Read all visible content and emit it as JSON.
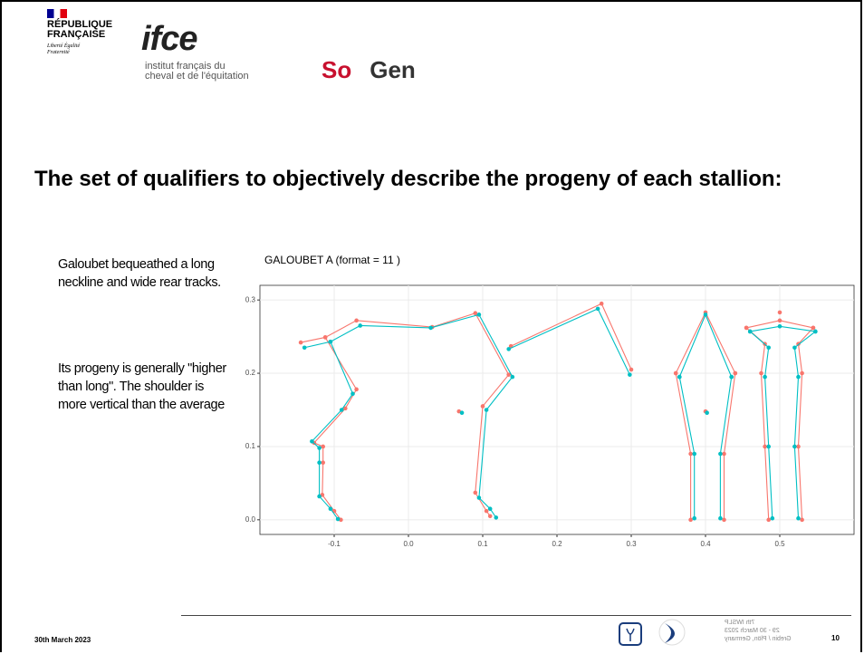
{
  "header": {
    "republic": "RÉPUBLIQUE FRANÇAISE",
    "motto": "Liberté Égalité Fraternité",
    "ifce": "ifce",
    "ifce_sub": "institut français du cheval et de l'équitation",
    "sogen_so": "So",
    "sogen_gen": "Gen"
  },
  "title": "The set of qualifiers to objectively describe the progeny of each stallion:",
  "paragraphs": [
    "Galoubet bequeathed a long neckline and wide rear tracks.",
    "Its progeny is generally \"higher than long\". The shoulder is more vertical than the average"
  ],
  "chart_data": {
    "type": "line",
    "title": "GALOUBET A (format = 11 )",
    "xlim": [
      -0.2,
      0.6
    ],
    "ylim": [
      -0.02,
      0.32
    ],
    "xticks": [
      -0.1,
      {
        "value": 0,
        "label": "0.0"
      },
      0.1,
      0.2,
      0.3,
      0.4,
      0.5
    ],
    "yticks": [
      {
        "value": 0,
        "label": "0.0"
      },
      0.1,
      0.2,
      0.3
    ],
    "grid": true,
    "series": [
      {
        "color": "#f8766d",
        "x": [
          -0.145,
          -0.112,
          -0.07,
          0.032,
          0.09,
          0.135,
          0.1,
          0.09,
          0.105,
          0.11,
          null,
          -0.112,
          -0.07,
          -0.085,
          -0.127,
          -0.115,
          -0.115,
          -0.116,
          -0.1,
          -0.091,
          null,
          0.138,
          0.26,
          0.3,
          null,
          0.068,
          null,
          0.36,
          0.4,
          0.44,
          null,
          0.36,
          0.38,
          0.38,
          null,
          0.44,
          0.425,
          0.425,
          null,
          0.4,
          null,
          0.455,
          0.5,
          0.545,
          null,
          0.455,
          0.48,
          0.475,
          0.48,
          0.485,
          null,
          0.545,
          0.525,
          0.53,
          0.525,
          0.53,
          null,
          0.5
        ],
        "values": [
          0.242,
          0.249,
          0.272,
          0.263,
          0.282,
          0.198,
          0.155,
          0.037,
          0.012,
          0.005,
          null,
          0.249,
          0.178,
          0.152,
          0.105,
          0.1,
          0.078,
          0.034,
          0.012,
          0.0,
          null,
          0.237,
          0.295,
          0.205,
          null,
          0.148,
          null,
          0.2,
          0.283,
          0.2,
          null,
          0.2,
          0.09,
          0.0,
          null,
          0.2,
          0.09,
          0.0,
          null,
          0.148,
          null,
          0.262,
          0.272,
          0.262,
          null,
          0.262,
          0.24,
          0.2,
          0.1,
          0.0,
          null,
          0.262,
          0.24,
          0.2,
          0.1,
          0.0,
          null,
          0.283
        ]
      },
      {
        "color": "#00bfc4",
        "x": [
          -0.14,
          -0.105,
          -0.065,
          0.03,
          0.095,
          0.14,
          0.105,
          0.095,
          0.11,
          0.118,
          null,
          -0.105,
          -0.075,
          -0.09,
          -0.13,
          -0.12,
          -0.12,
          -0.12,
          -0.105,
          -0.095,
          null,
          0.135,
          0.255,
          0.298,
          null,
          0.072,
          null,
          0.365,
          0.4,
          0.435,
          null,
          0.365,
          0.385,
          0.385,
          null,
          0.435,
          0.42,
          0.42,
          null,
          0.402,
          null,
          0.46,
          0.5,
          0.548,
          null,
          0.46,
          0.485,
          0.48,
          0.485,
          0.49,
          null,
          0.548,
          0.52,
          0.525,
          0.52,
          0.525
        ],
        "values": [
          0.235,
          0.243,
          0.265,
          0.262,
          0.28,
          0.195,
          0.15,
          0.03,
          0.015,
          0.003,
          null,
          0.243,
          0.172,
          0.15,
          0.107,
          0.098,
          0.078,
          0.032,
          0.015,
          0.001,
          null,
          0.233,
          0.288,
          0.198,
          null,
          0.146,
          null,
          0.195,
          0.28,
          0.195,
          null,
          0.195,
          0.09,
          0.002,
          null,
          0.195,
          0.09,
          0.002,
          null,
          0.146,
          null,
          0.257,
          0.264,
          0.257,
          null,
          0.257,
          0.235,
          0.195,
          0.1,
          0.002,
          null,
          0.257,
          0.235,
          0.195,
          0.1,
          0.002
        ]
      }
    ]
  },
  "footer": {
    "date": "30th March 2023",
    "page": "10",
    "conference": [
      "7th IWSLP",
      "29 - 30 March 2023",
      "Grebin / Plön, Germany"
    ]
  }
}
